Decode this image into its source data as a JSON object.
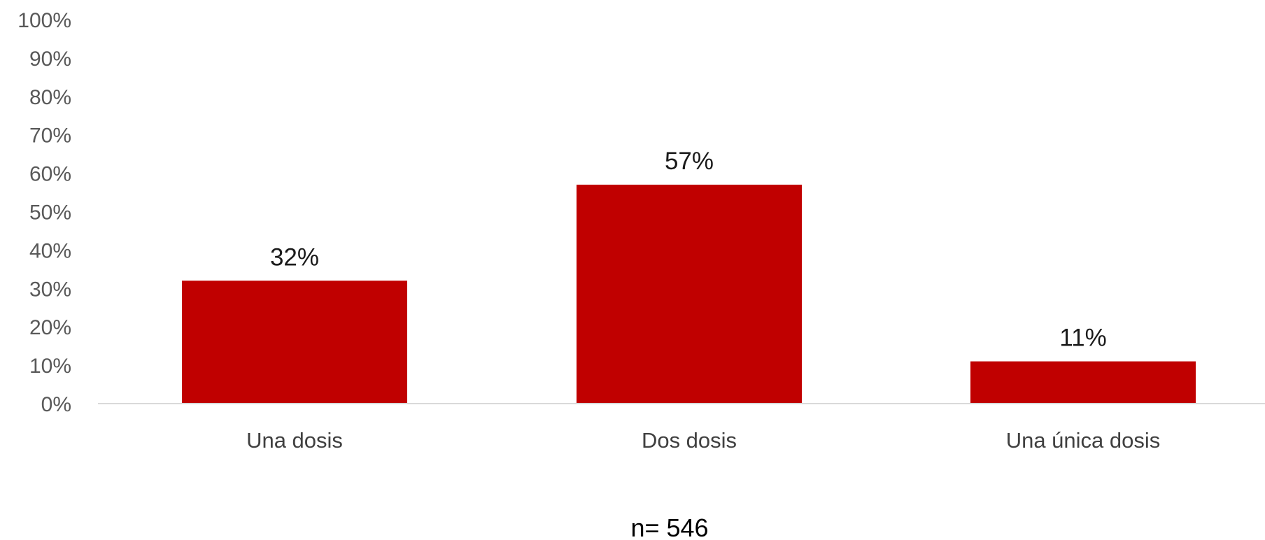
{
  "chart_data": {
    "type": "bar",
    "categories": [
      "Una dosis",
      "Dos dosis",
      "Una única dosis"
    ],
    "values": [
      32,
      57,
      11
    ],
    "data_labels": [
      "32%",
      "57%",
      "11%"
    ],
    "title": "",
    "xlabel": "",
    "ylabel": "",
    "ylim": [
      0,
      100
    ],
    "y_ticks": [
      0,
      10,
      20,
      30,
      40,
      50,
      60,
      70,
      80,
      90,
      100
    ],
    "y_tick_labels": [
      "0%",
      "10%",
      "20%",
      "30%",
      "40%",
      "50%",
      "60%",
      "70%",
      "80%",
      "90%",
      "100%"
    ],
    "grid": false,
    "legend": "none",
    "bar_color": "#c00000",
    "axis_color": "#d9d9d9"
  },
  "note": "n= 546"
}
